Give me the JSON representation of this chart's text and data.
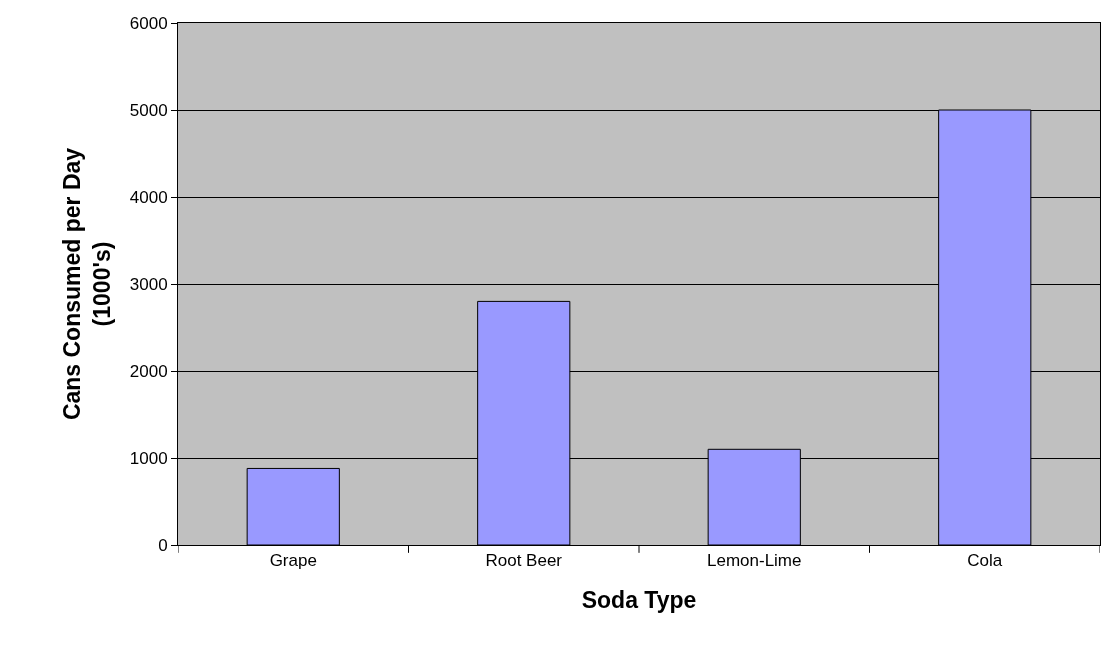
{
  "chart_data": {
    "type": "bar",
    "xlabel": "Soda Type",
    "ylabel": "Cans Consumed per Day (1000's)",
    "categories": [
      "Grape",
      "Root Beer",
      "Lemon-Lime",
      "Cola"
    ],
    "values": [
      880,
      2800,
      1100,
      5000
    ],
    "color": "#9999ff",
    "ylim": [
      0,
      6000
    ],
    "yticks": [
      0,
      1000,
      2000,
      3000,
      4000,
      5000,
      6000
    ],
    "grid": "y"
  }
}
